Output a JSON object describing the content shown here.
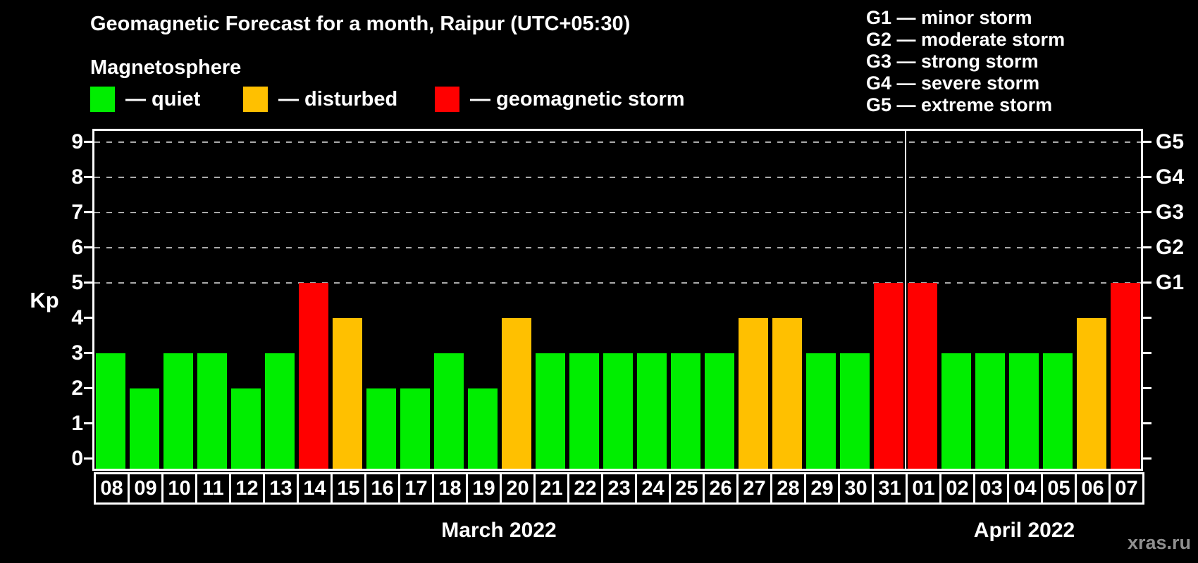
{
  "page": {
    "background": "#000000",
    "watermark": "xras.ru"
  },
  "header": {
    "title": "Geomagnetic Forecast for a month, Raipur (UTC+05:30)",
    "subtitle": "Magnetosphere"
  },
  "magnetosphere_legend": {
    "items": [
      {
        "status": "quiet",
        "label": "— quiet",
        "color": "#00EE00"
      },
      {
        "status": "disturbed",
        "label": "— disturbed",
        "color": "#FFC000"
      },
      {
        "status": "storm",
        "label": "— geomagnetic storm",
        "color": "#FF0000"
      }
    ]
  },
  "storm_scale_legend": {
    "items": [
      "G1 — minor storm",
      "G2 — moderate storm",
      "G3 — strong storm",
      "G4 — severe storm",
      "G5 — extreme storm"
    ]
  },
  "chart_data": {
    "type": "bar",
    "title": "Geomagnetic Forecast for a month, Raipur (UTC+05:30)",
    "ylabel": "Kp",
    "xlabel": "",
    "ylim": [
      0,
      9.4
    ],
    "grid": "dashed horizontal at Kp 5-9",
    "legend_position": "top",
    "yticks": [
      "0",
      "1",
      "2",
      "3",
      "4",
      "5",
      "6",
      "7",
      "8",
      "9"
    ],
    "grid_levels_kp": [
      5,
      6,
      7,
      8,
      9
    ],
    "right_axis_labels": [
      {
        "kp": 9,
        "label": "G5"
      },
      {
        "kp": 8,
        "label": "G4"
      },
      {
        "kp": 7,
        "label": "G3"
      },
      {
        "kp": 6,
        "label": "G2"
      },
      {
        "kp": 5,
        "label": "G1"
      }
    ],
    "status_colors": {
      "quiet": "#00EE00",
      "disturbed": "#FFC000",
      "storm": "#FF0000"
    },
    "months": [
      {
        "label": "March 2022",
        "days": 24
      },
      {
        "label": "April 2022",
        "days": 7
      }
    ],
    "month_boundary_after_index": 23,
    "points": [
      {
        "date": "08",
        "kp": 3,
        "status": "quiet"
      },
      {
        "date": "09",
        "kp": 2,
        "status": "quiet"
      },
      {
        "date": "10",
        "kp": 3,
        "status": "quiet"
      },
      {
        "date": "11",
        "kp": 3,
        "status": "quiet"
      },
      {
        "date": "12",
        "kp": 2,
        "status": "quiet"
      },
      {
        "date": "13",
        "kp": 3,
        "status": "quiet"
      },
      {
        "date": "14",
        "kp": 5,
        "status": "storm"
      },
      {
        "date": "15",
        "kp": 4,
        "status": "disturbed"
      },
      {
        "date": "16",
        "kp": 2,
        "status": "quiet"
      },
      {
        "date": "17",
        "kp": 2,
        "status": "quiet"
      },
      {
        "date": "18",
        "kp": 3,
        "status": "quiet"
      },
      {
        "date": "19",
        "kp": 2,
        "status": "quiet"
      },
      {
        "date": "20",
        "kp": 4,
        "status": "disturbed"
      },
      {
        "date": "21",
        "kp": 3,
        "status": "quiet"
      },
      {
        "date": "22",
        "kp": 3,
        "status": "quiet"
      },
      {
        "date": "23",
        "kp": 3,
        "status": "quiet"
      },
      {
        "date": "24",
        "kp": 3,
        "status": "quiet"
      },
      {
        "date": "25",
        "kp": 3,
        "status": "quiet"
      },
      {
        "date": "26",
        "kp": 3,
        "status": "quiet"
      },
      {
        "date": "27",
        "kp": 4,
        "status": "disturbed"
      },
      {
        "date": "28",
        "kp": 4,
        "status": "disturbed"
      },
      {
        "date": "29",
        "kp": 3,
        "status": "quiet"
      },
      {
        "date": "30",
        "kp": 3,
        "status": "quiet"
      },
      {
        "date": "31",
        "kp": 5,
        "status": "storm"
      },
      {
        "date": "01",
        "kp": 5,
        "status": "storm"
      },
      {
        "date": "02",
        "kp": 3,
        "status": "quiet"
      },
      {
        "date": "03",
        "kp": 3,
        "status": "quiet"
      },
      {
        "date": "04",
        "kp": 3,
        "status": "quiet"
      },
      {
        "date": "05",
        "kp": 3,
        "status": "quiet"
      },
      {
        "date": "06",
        "kp": 4,
        "status": "disturbed"
      },
      {
        "date": "07",
        "kp": 5,
        "status": "storm"
      }
    ]
  }
}
